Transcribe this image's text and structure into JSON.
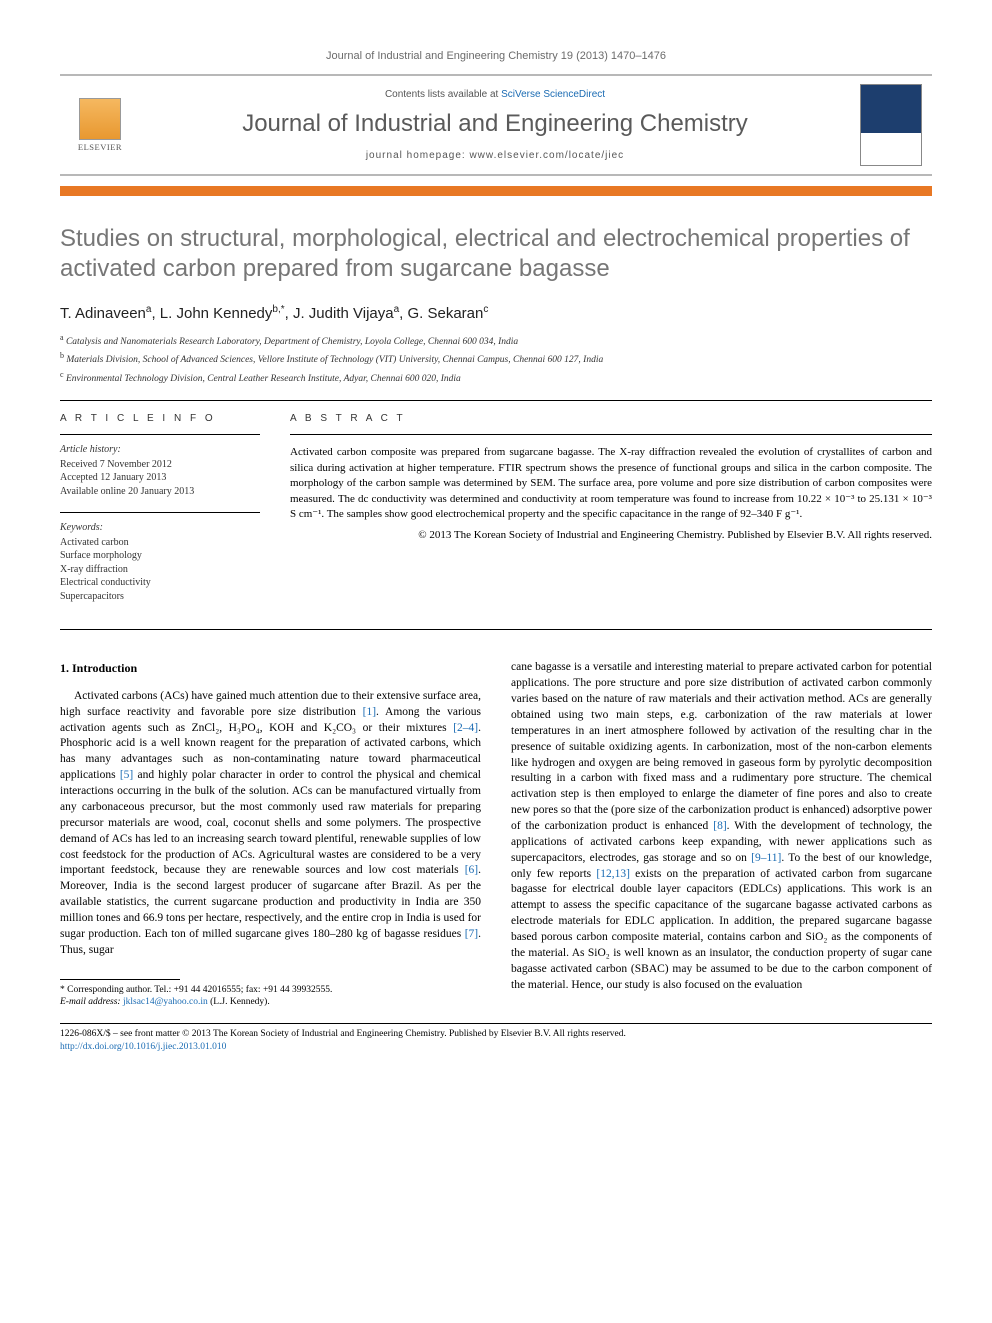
{
  "header": {
    "citation": "Journal of Industrial and Engineering Chemistry 19 (2013) 1470–1476",
    "contents_prefix": "Contents lists available at ",
    "contents_link": "SciVerse ScienceDirect",
    "journal_name": "Journal of Industrial and Engineering Chemistry",
    "homepage_prefix": "journal homepage: ",
    "homepage_url": "www.elsevier.com/locate/jiec",
    "publisher_name": "ELSEVIER"
  },
  "article": {
    "title": "Studies on structural, morphological, electrical and electrochemical properties of activated carbon prepared from sugarcane bagasse",
    "authors_html": "T. Adinaveen<sup>a</sup>, L. John Kennedy<sup>b,*</sup>, J. Judith Vijaya<sup>a</sup>, G. Sekaran<sup>c</sup>",
    "affiliations": [
      {
        "sup": "a",
        "text": "Catalysis and Nanomaterials Research Laboratory, Department of Chemistry, Loyola College, Chennai 600 034, India"
      },
      {
        "sup": "b",
        "text": "Materials Division, School of Advanced Sciences, Vellore Institute of Technology (VIT) University, Chennai Campus, Chennai 600 127, India"
      },
      {
        "sup": "c",
        "text": "Environmental Technology Division, Central Leather Research Institute, Adyar, Chennai 600 020, India"
      }
    ]
  },
  "info": {
    "label": "A R T I C L E   I N F O",
    "history_heading": "Article history:",
    "history": [
      "Received 7 November 2012",
      "Accepted 12 January 2013",
      "Available online 20 January 2013"
    ],
    "keywords_heading": "Keywords:",
    "keywords": [
      "Activated carbon",
      "Surface morphology",
      "X-ray diffraction",
      "Electrical conductivity",
      "Supercapacitors"
    ]
  },
  "abstract": {
    "label": "A B S T R A C T",
    "text": "Activated carbon composite was prepared from sugarcane bagasse. The X-ray diffraction revealed the evolution of crystallites of carbon and silica during activation at higher temperature. FTIR spectrum shows the presence of functional groups and silica in the carbon composite. The morphology of the carbon sample was determined by SEM. The surface area, pore volume and pore size distribution of carbon composites were measured. The dc conductivity was determined and conductivity at room temperature was found to increase from 10.22 × 10⁻³ to 25.131 × 10⁻³ S cm⁻¹. The samples show good electrochemical property and the specific capacitance in the range of 92–340 F g⁻¹.",
    "copyright": "© 2013 The Korean Society of Industrial and Engineering Chemistry. Published by Elsevier B.V. All rights reserved."
  },
  "body": {
    "heading": "1. Introduction",
    "col1": "Activated carbons (ACs) have gained much attention due to their extensive surface area, high surface reactivity and favorable pore size distribution [1]. Among the various activation agents such as ZnCl₂, H₃PO₄, KOH and K₂CO₃ or their mixtures [2–4]. Phosphoric acid is a well known reagent for the preparation of activated carbons, which has many advantages such as non-contaminating nature toward pharmaceutical applications [5] and highly polar character in order to control the physical and chemical interactions occurring in the bulk of the solution. ACs can be manufactured virtually from any carbonaceous precursor, but the most commonly used raw materials for preparing precursor materials are wood, coal, coconut shells and some polymers. The prospective demand of ACs has led to an increasing search toward plentiful, renewable supplies of low cost feedstock for the production of ACs. Agricultural wastes are considered to be a very important feedstock, because they are renewable sources and low cost materials [6]. Moreover, India is the second largest producer of sugarcane after Brazil. As per the available statistics, the current sugarcane production and productivity in India are 350 million tones and 66.9 tons per hectare, respectively, and the entire crop in India is used for sugar production. Each ton of milled sugarcane gives 180–280 kg of bagasse residues [7]. Thus, sugar",
    "col2": "cane bagasse is a versatile and interesting material to prepare activated carbon for potential applications. The pore structure and pore size distribution of activated carbon commonly varies based on the nature of raw materials and their activation method. ACs are generally obtained using two main steps, e.g. carbonization of the raw materials at lower temperatures in an inert atmosphere followed by activation of the resulting char in the presence of suitable oxidizing agents. In carbonization, most of the non-carbon elements like hydrogen and oxygen are being removed in gaseous form by pyrolytic decomposition resulting in a carbon with fixed mass and a rudimentary pore structure. The chemical activation step is then employed to enlarge the diameter of fine pores and also to create new pores so that the (pore size of the carbonization product is enhanced) adsorptive power of the carbonization product is enhanced [8]. With the development of technology, the applications of activated carbons keep expanding, with newer applications such as supercapacitors, electrodes, gas storage and so on [9–11]. To the best of our knowledge, only few reports [12,13] exists on the preparation of activated carbon from sugarcane bagasse for electrical double layer capacitors (EDLCs) applications. This work is an attempt to assess the specific capacitance of the sugarcane bagasse activated carbons as electrode materials for EDLC application. In addition, the prepared sugarcane bagasse based porous carbon composite material, contains carbon and SiO₂ as the components of the material. As SiO₂ is well known as an insulator, the conduction property of sugar cane bagasse activated carbon (SBAC) may be assumed to be due to the carbon component of the material. Hence, our study is also focused on the evaluation",
    "ref_links_col1": [
      "[1]",
      "[2–4]",
      "[5]",
      "[6]",
      "[7]"
    ],
    "ref_links_col2": [
      "[8]",
      "[9–11]",
      "[12,13]"
    ]
  },
  "footnotes": {
    "corresponding": "* Corresponding author. Tel.: +91 44 42016555; fax: +91 44 39932555.",
    "email_label": "E-mail address: ",
    "email": "jklsac14@yahoo.co.in",
    "email_suffix": " (L.J. Kennedy)."
  },
  "footer": {
    "line1": "1226-086X/$ – see front matter © 2013 The Korean Society of Industrial and Engineering Chemistry. Published by Elsevier B.V. All rights reserved.",
    "doi": "http://dx.doi.org/10.1016/j.jiec.2013.01.010"
  },
  "colors": {
    "orange": "#e8a14a",
    "link": "#1a6bb3",
    "title_gray": "#767676"
  }
}
